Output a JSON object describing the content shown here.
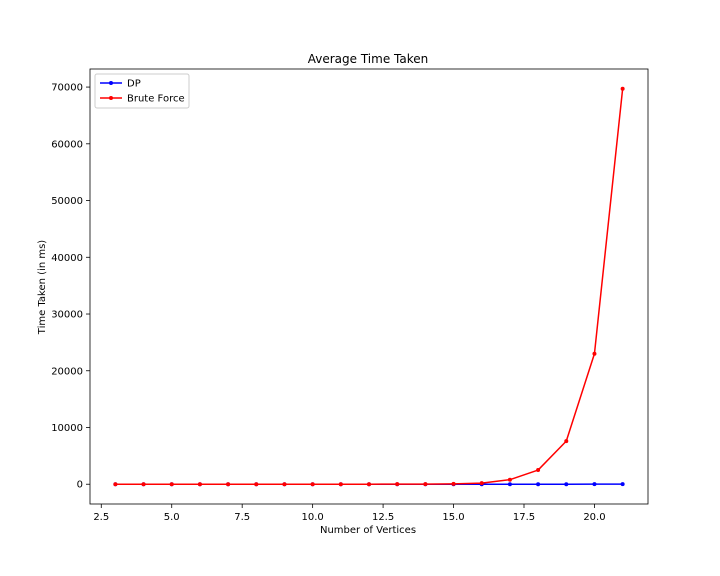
{
  "chart_data": {
    "type": "line",
    "title": "Average Time Taken",
    "xlabel": "Number of Vertices",
    "ylabel": "Time Taken (in ms)",
    "x": [
      3,
      4,
      5,
      6,
      7,
      8,
      9,
      10,
      11,
      12,
      13,
      14,
      15,
      16,
      17,
      18,
      19,
      20,
      21
    ],
    "series": [
      {
        "name": "DP",
        "color": "#0000ff",
        "values": [
          0,
          0,
          0,
          0,
          0,
          0,
          0,
          0,
          0,
          0,
          0,
          0,
          0,
          0,
          1,
          2,
          5,
          10,
          20
        ]
      },
      {
        "name": "Brute Force",
        "color": "#ff0000",
        "values": [
          0,
          0,
          0,
          0,
          0,
          1,
          1,
          2,
          3,
          5,
          10,
          25,
          60,
          200,
          800,
          2500,
          7600,
          23000,
          69700
        ]
      }
    ],
    "xlim": [
      2.1,
      21.9
    ],
    "ylim": [
      -3485,
      73185
    ],
    "xticks": [
      2.5,
      5.0,
      7.5,
      10.0,
      12.5,
      15.0,
      17.5,
      20.0
    ],
    "xtick_labels": [
      "2.5",
      "5.0",
      "7.5",
      "10.0",
      "12.5",
      "15.0",
      "17.5",
      "20.0"
    ],
    "yticks": [
      0,
      10000,
      20000,
      30000,
      40000,
      50000,
      60000,
      70000
    ],
    "ytick_labels": [
      "0",
      "10000",
      "20000",
      "30000",
      "40000",
      "50000",
      "60000",
      "70000"
    ],
    "grid": false,
    "legend_position": "upper-left",
    "marker": "dot"
  }
}
